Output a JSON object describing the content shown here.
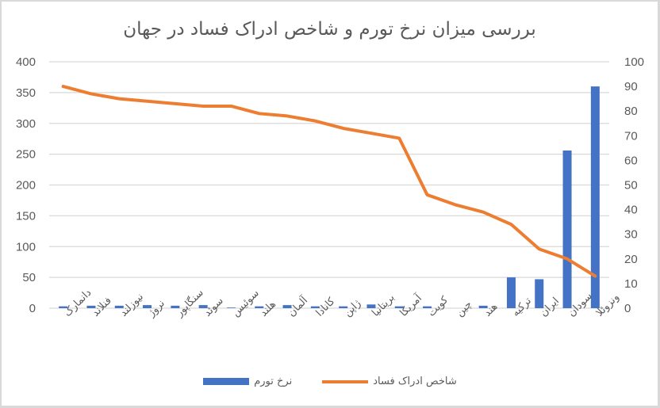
{
  "chart_data": {
    "type": "bar+line",
    "title": "بررسی میزان نرخ تورم و شاخص ادراک فساد در جهان",
    "categories": [
      "دانمارک",
      "فنلاند",
      "نیوزلند",
      "نروژ",
      "سنگاپور",
      "سوئد",
      "سوئیس",
      "هلند",
      "آلمان",
      "کانادا",
      "ژاپن",
      "بریتانیا",
      "آمریکا",
      "کویت",
      "چین",
      "هند",
      "ترکیه",
      "ایران",
      "سودان",
      "ونزوئلا"
    ],
    "series": [
      {
        "name": "نرخ تورم",
        "type": "bar",
        "axis": "left",
        "color": "#4472c4",
        "values": [
          3,
          4,
          4,
          5,
          4,
          5,
          1,
          3,
          5,
          3,
          3,
          6,
          3,
          3,
          0,
          4,
          50,
          47,
          256,
          360
        ]
      },
      {
        "name": "شاخص ادراک فساد",
        "type": "line",
        "axis": "right",
        "color": "#ed7d31",
        "values": [
          90,
          87,
          85,
          84,
          83,
          82,
          82,
          79,
          78,
          76,
          73,
          71,
          69,
          46,
          42,
          39,
          34,
          24,
          20,
          13
        ]
      }
    ],
    "left_axis": {
      "min": 0,
      "max": 400,
      "step": 50,
      "ticks": [
        "0",
        "50",
        "100",
        "150",
        "200",
        "250",
        "300",
        "350",
        "400"
      ]
    },
    "right_axis": {
      "min": 0,
      "max": 100,
      "step": 10,
      "ticks": [
        "0",
        "10",
        "20",
        "30",
        "40",
        "50",
        "60",
        "70",
        "80",
        "90",
        "100"
      ]
    },
    "grid": true,
    "legend_position": "bottom"
  },
  "legend": {
    "line_label": "شاخص ادراک فساد",
    "bar_label": "نرخ تورم"
  }
}
